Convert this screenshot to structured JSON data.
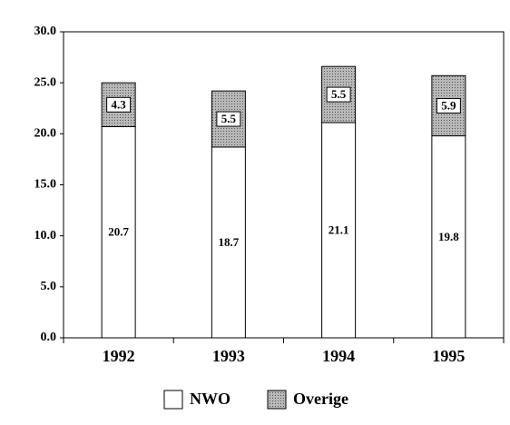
{
  "chart_data": {
    "type": "stacked_bar",
    "categories": [
      "1992",
      "1993",
      "1994",
      "1995"
    ],
    "series": [
      {
        "name": "NWO",
        "color": "#ffffff",
        "values": [
          20.7,
          18.7,
          21.1,
          19.8
        ]
      },
      {
        "name": "Overige",
        "color": "#a8a8a8",
        "values": [
          4.3,
          5.5,
          5.5,
          5.9
        ]
      }
    ],
    "ylim": [
      0,
      30
    ],
    "yticks": [
      {
        "value": 0,
        "label": "0.0"
      },
      {
        "value": 5,
        "label": "5.0"
      },
      {
        "value": 10,
        "label": "10.0"
      },
      {
        "value": 15,
        "label": "15.0"
      },
      {
        "value": 20,
        "label": "20.0"
      },
      {
        "value": 25,
        "label": "25.0"
      },
      {
        "value": 30,
        "label": "30.0"
      }
    ],
    "legend": "bottom"
  }
}
